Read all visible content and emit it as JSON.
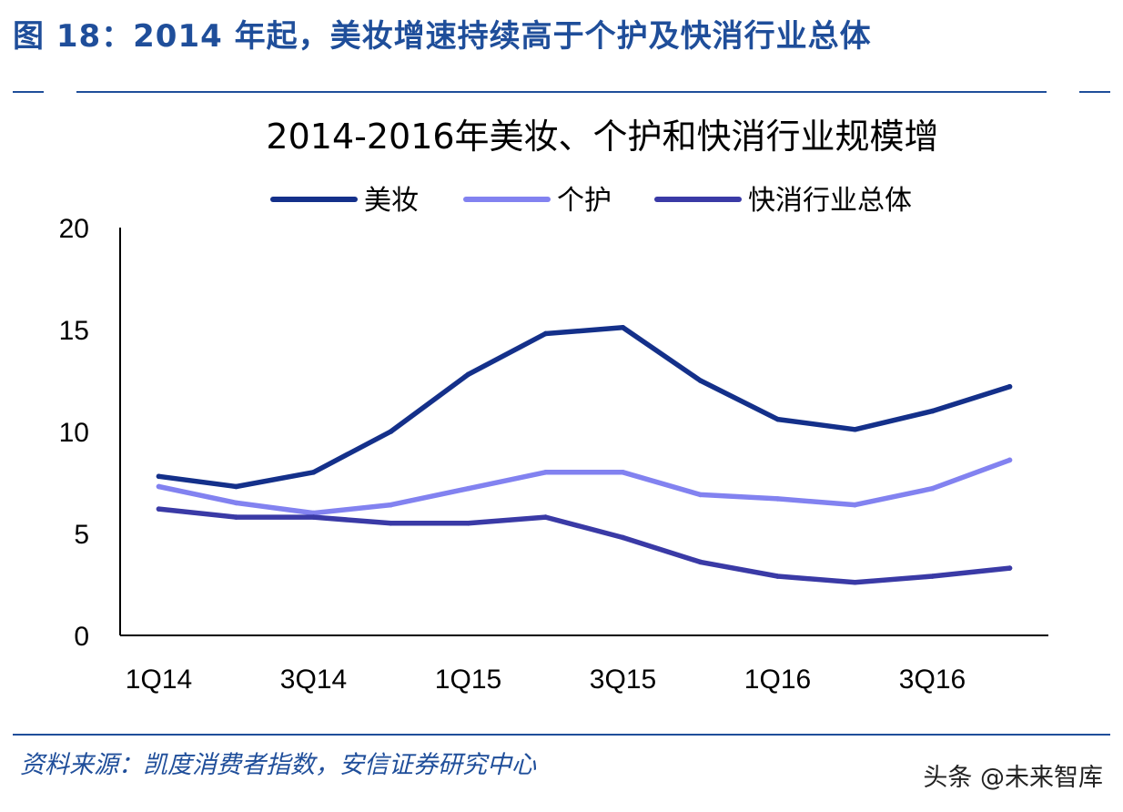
{
  "figure_title": "图 18：2014 年起，美妆增速持续高于个护及快消行业总体",
  "source_note": "资料来源：凯度消费者指数，安信证券研究中心",
  "watermark": "头条 @未来智库",
  "chart_data": {
    "type": "line",
    "title": "2014-2016年美妆、个护和快消行业规模增",
    "xlabel": "",
    "ylabel": "",
    "ylim": [
      0,
      20
    ],
    "yticks": [
      0,
      5,
      10,
      15,
      20
    ],
    "categories": [
      "1Q14",
      "2Q14",
      "3Q14",
      "4Q14",
      "1Q15",
      "2Q15",
      "3Q15",
      "4Q15",
      "1Q16",
      "2Q16",
      "3Q16",
      "4Q16"
    ],
    "xtick_labels": [
      "1Q14",
      "",
      "3Q14",
      "",
      "1Q15",
      "",
      "3Q15",
      "",
      "1Q16",
      "",
      "3Q16",
      ""
    ],
    "grid": false,
    "legend_position": "top",
    "series": [
      {
        "name": "美妆",
        "color": "#14308a",
        "values": [
          7.8,
          7.3,
          8.0,
          10.0,
          12.8,
          14.8,
          15.1,
          12.5,
          10.6,
          10.1,
          11.0,
          12.2
        ]
      },
      {
        "name": "个护",
        "color": "#8282f0",
        "values": [
          7.3,
          6.5,
          6.0,
          6.4,
          7.2,
          8.0,
          8.0,
          6.9,
          6.7,
          6.4,
          7.2,
          8.6
        ]
      },
      {
        "name": "快消行业总体",
        "color": "#3a3aa6",
        "values": [
          6.2,
          5.8,
          5.8,
          5.5,
          5.5,
          5.8,
          4.8,
          3.6,
          2.9,
          2.6,
          2.9,
          3.3
        ]
      }
    ]
  }
}
